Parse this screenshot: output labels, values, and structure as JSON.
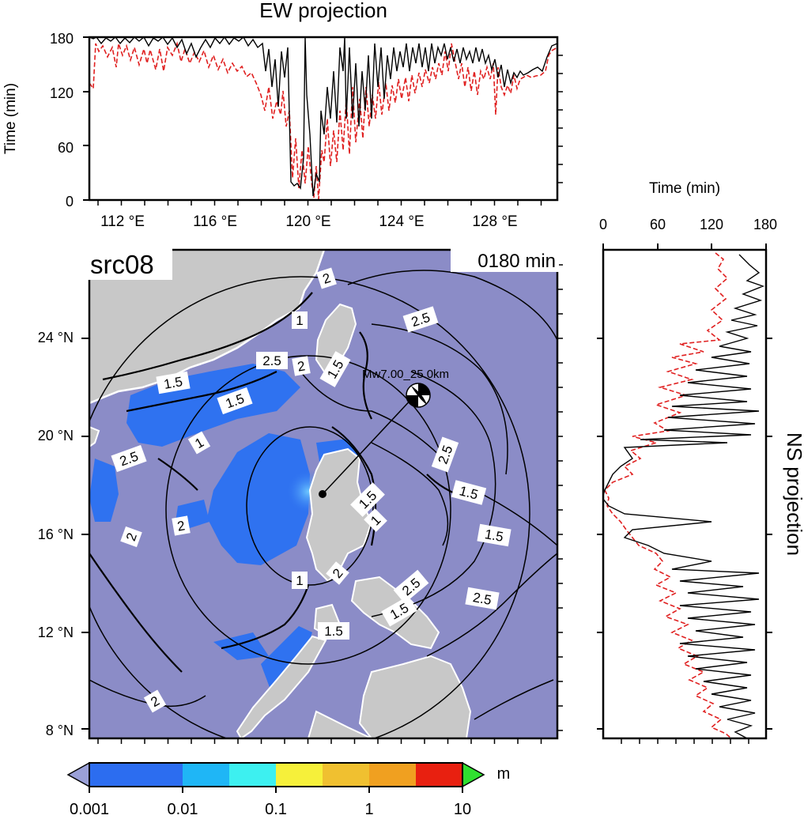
{
  "ew_panel": {
    "title": "EW projection",
    "ylabel": "Time (min)",
    "y_ticks": [
      "180",
      "120",
      "60",
      "0"
    ],
    "x_ticks": [
      "112 °E",
      "116 °E",
      "120 °E",
      "124 °E",
      "128 °E"
    ]
  },
  "ns_panel": {
    "title": "NS projection",
    "xlabel": "Time (min)",
    "x_ticks": [
      "0",
      "60",
      "120",
      "180"
    ]
  },
  "map": {
    "source_label": "src08",
    "time_label": "0180 min",
    "event_label": "Mw7.00_25.0km",
    "lat_ticks": [
      "24 °N",
      "20 °N",
      "16 °N",
      "12 °N",
      "8 °N"
    ],
    "contour_labels": [
      "2",
      "1",
      "2.5",
      "2",
      "1.5",
      "2.5",
      "1.5",
      "1.5",
      "1",
      "2.5",
      "2",
      "1.5",
      "2.5",
      "1.5",
      "2",
      "1.5",
      "1",
      "1.5",
      "2.5",
      "1",
      "2.5",
      "1.5",
      "2",
      "2"
    ],
    "colors": {
      "sea": "#8b8cc7",
      "land": "#c8c8c8",
      "wave_blue": "#2f72f0",
      "trace_black": "#000000",
      "trace_red": "#e02020"
    }
  },
  "colorbar": {
    "unit": "m",
    "ticks": [
      "0.001",
      "0.01",
      "0.1",
      "1",
      "10"
    ],
    "colors": [
      "#2c6df0",
      "#1fb6f6",
      "#3df0f0",
      "#f6f03a",
      "#f0a020",
      "#e82010"
    ]
  }
}
